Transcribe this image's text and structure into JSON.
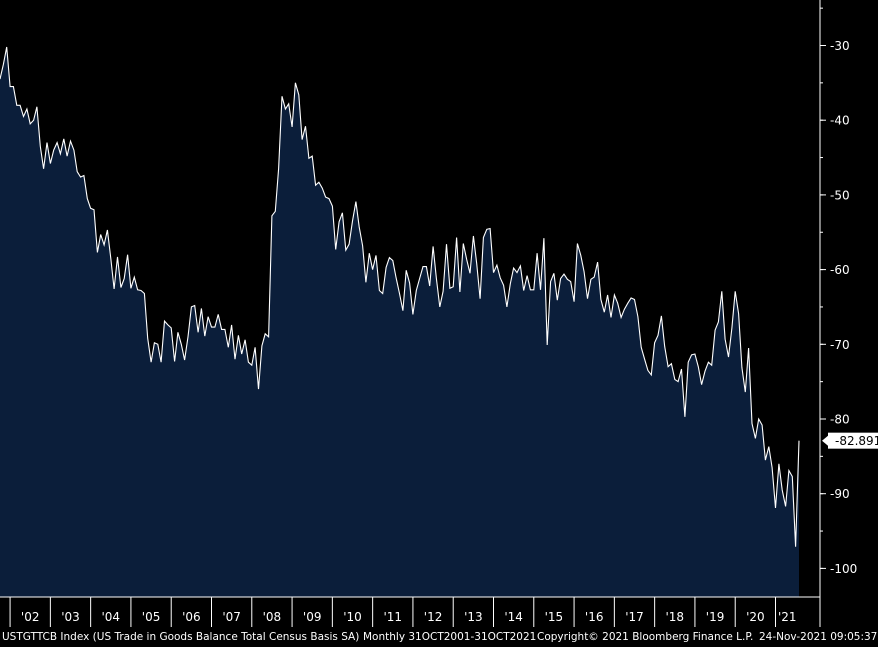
{
  "chart_data": {
    "type": "area",
    "ylim": [
      -104,
      5
    ],
    "y_ticks": [
      -30,
      -40,
      -50,
      -60,
      -70,
      -80,
      -90,
      -100
    ],
    "y_tick_labels": [
      "-30",
      "-40",
      "-50",
      "-60",
      "-70",
      "-80",
      "-90",
      "-100"
    ],
    "x_range": [
      "2001-10",
      "2021-10"
    ],
    "x_tick_labels": [
      "'02",
      "'03",
      "'04",
      "'05",
      "'06",
      "'07",
      "'08",
      "'09",
      "'10",
      "'11",
      "'12",
      "'13",
      "'14",
      "'15",
      "'16",
      "'17",
      "'18",
      "'19",
      "'20",
      "'21"
    ],
    "last_value_label": "-82.891",
    "colors": {
      "background": "#000000",
      "area_fill": "#0b1e3a",
      "line": "#ffffff"
    },
    "series": [
      {
        "x_start": "2001-10",
        "frequency": "monthly",
        "values": [
          -34.5,
          -32.5,
          -30.2,
          -35.5,
          -35.5,
          -38.0,
          -38.0,
          -39.5,
          -38.5,
          -40.5,
          -40.0,
          -38.2,
          -43.5,
          -46.5,
          -43.0,
          -45.8,
          -44.0,
          -43.0,
          -44.5,
          -42.5,
          -44.8,
          -42.8,
          -44.0,
          -46.9,
          -47.6,
          -47.4,
          -50.5,
          -51.8,
          -52.0,
          -57.7,
          -55.3,
          -56.7,
          -54.7,
          -58.5,
          -62.6,
          -58.3,
          -62.4,
          -61.2,
          -58.0,
          -62.5,
          -61.0,
          -62.7,
          -62.8,
          -63.2,
          -69.2,
          -72.4,
          -69.8,
          -70.0,
          -72.4,
          -66.9,
          -67.4,
          -67.8,
          -72.3,
          -68.4,
          -70.0,
          -72.1,
          -69.0,
          -65.0,
          -64.8,
          -68.4,
          -65.2,
          -68.9,
          -66.3,
          -67.7,
          -67.7,
          -66.0,
          -68.0,
          -68.0,
          -70.4,
          -67.4,
          -72.0,
          -68.8,
          -71.3,
          -69.4,
          -72.4,
          -72.8,
          -70.4,
          -76.0,
          -70.2,
          -68.6,
          -69.0,
          -52.8,
          -52.2,
          -46.5,
          -36.8,
          -38.5,
          -37.8,
          -40.9,
          -35.0,
          -36.6,
          -42.6,
          -40.8,
          -45.1,
          -44.8,
          -48.7,
          -48.3,
          -49.1,
          -50.3,
          -50.5,
          -51.5,
          -57.3,
          -53.6,
          -52.4,
          -57.4,
          -56.6,
          -53.5,
          -50.9,
          -54.3,
          -56.8,
          -61.7,
          -57.8,
          -60.0,
          -58.1,
          -62.8,
          -63.2,
          -59.7,
          -58.4,
          -58.8,
          -61.1,
          -63.2,
          -65.5,
          -60.1,
          -61.8,
          -66.0,
          -62.8,
          -61.2,
          -59.6,
          -59.6,
          -62.2,
          -56.9,
          -61.2,
          -65.0,
          -62.9,
          -56.6,
          -62.5,
          -62.3,
          -55.7,
          -63.0,
          -56.5,
          -58.6,
          -60.5,
          -55.5,
          -59.2,
          -63.9,
          -55.7,
          -54.6,
          -54.5,
          -60.4,
          -59.4,
          -61.1,
          -62.1,
          -65.0,
          -61.9,
          -59.8,
          -60.4,
          -59.5,
          -62.8,
          -60.8,
          -62.7,
          -62.7,
          -57.8,
          -62.7,
          -55.8,
          -70.1,
          -61.6,
          -60.5,
          -64.1,
          -61.2,
          -60.6,
          -61.3,
          -61.6,
          -64.3,
          -56.5,
          -58.1,
          -60.3,
          -63.9,
          -61.3,
          -61.0,
          -59.0,
          -64.0,
          -65.7,
          -63.4,
          -66.4,
          -63.4,
          -64.5,
          -66.4,
          -65.3,
          -64.5,
          -63.8,
          -64.0,
          -66.3,
          -70.4,
          -72.0,
          -73.5,
          -74.1,
          -69.8,
          -68.8,
          -66.2,
          -70.3,
          -73.0,
          -72.6,
          -74.7,
          -75.0,
          -73.3,
          -79.7,
          -72.4,
          -71.4,
          -71.3,
          -73.0,
          -75.4,
          -73.6,
          -72.4,
          -72.8,
          -68.1,
          -67.0,
          -62.9,
          -69.3,
          -71.7,
          -67.8,
          -62.9,
          -65.9,
          -73.1,
          -76.4,
          -70.5,
          -80.6,
          -82.6,
          -80.0,
          -80.8,
          -85.5,
          -83.7,
          -86.5,
          -91.9,
          -86.0,
          -89.5,
          -91.7,
          -86.9,
          -87.7,
          -97.1,
          -82.9
        ]
      }
    ]
  },
  "footer": {
    "ticker": "USTGTTCB Index (US Trade in Goods Balance Total Census Basis SA)",
    "period": "Monthly 31OCT2001-31OCT2021",
    "copyright": "Copyright© 2021 Bloomberg Finance L.P.",
    "timestamp": "24-Nov-2021 09:05:37"
  }
}
